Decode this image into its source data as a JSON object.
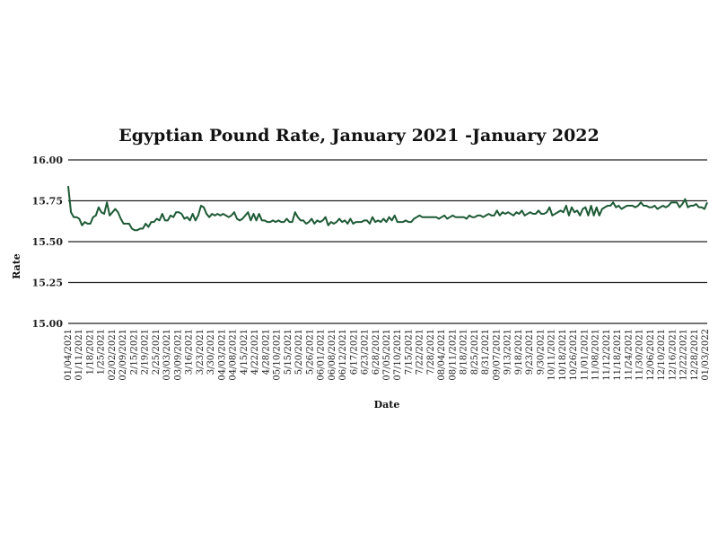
{
  "chart_data": {
    "type": "line",
    "title": "Egyptian Pound Rate, January 2021 -January 2022",
    "xlabel": "Date",
    "ylabel": "Rate",
    "ylim": [
      15.0,
      16.0
    ],
    "yticks": [
      "15.00",
      "15.25",
      "15.50",
      "15.75",
      "16.00"
    ],
    "grid": "horizontal",
    "line_color": "#1d5a35",
    "x_tick_labels": [
      "01/04/2021",
      "01/11/2021",
      "1/18/2021",
      "1/25/2021",
      "02/02/2021",
      "02/09/2021",
      "2/15/2021",
      "2/19/2021",
      "2/25/2021",
      "03/03/2021",
      "03/09/2021",
      "3/16/2021",
      "3/23/2021",
      "3/30/2021",
      "04/03/2021",
      "04/08/2021",
      "4/15/2021",
      "4/22/2021",
      "4/28/2021",
      "05/10/2021",
      "5/15/2021",
      "5/20/2021",
      "5/26/2021",
      "06/01/2021",
      "06/08/2021",
      "06/12/2021",
      "6/17/2021",
      "6/23/2021",
      "6/28/2021",
      "07/05/2021",
      "07/10/2021",
      "7/15/2021",
      "7/22/2021",
      "7/28/2021",
      "08/04/2021",
      "08/11/2021",
      "8/18/2021",
      "8/25/2021",
      "8/31/2021",
      "09/07/2021",
      "9/13/2021",
      "9/18/2021",
      "9/23/2021",
      "9/30/2021",
      "10/11/2021",
      "10/18/2021",
      "10/26/2021",
      "11/01/2021",
      "11/08/2021",
      "11/12/2021",
      "11/18/2021",
      "11/24/2021",
      "11/30/2021",
      "12/06/2021",
      "12/10/2021",
      "12/16/2021",
      "12/22/2021",
      "12/28/2021",
      "01/03/2022"
    ],
    "series": [
      {
        "values": [
          15.84,
          15.68,
          15.65,
          15.65,
          15.64,
          15.6,
          15.62,
          15.61,
          15.61,
          15.65,
          15.66,
          15.71,
          15.68,
          15.67,
          15.74,
          15.66,
          15.68,
          15.7,
          15.68,
          15.64,
          15.61,
          15.61,
          15.61,
          15.58,
          15.57,
          15.57,
          15.58,
          15.58,
          15.61,
          15.59,
          15.62,
          15.62,
          15.64,
          15.63,
          15.67,
          15.63,
          15.63,
          15.66,
          15.65,
          15.68,
          15.68,
          15.67,
          15.64,
          15.65,
          15.63,
          15.67,
          15.63,
          15.66,
          15.72,
          15.71,
          15.67,
          15.65,
          15.67,
          15.66,
          15.67,
          15.66,
          15.67,
          15.66,
          15.65,
          15.66,
          15.68,
          15.64,
          15.63,
          15.64,
          15.66,
          15.68,
          15.63,
          15.67,
          15.63,
          15.67,
          15.63,
          15.63,
          15.62,
          15.62,
          15.63,
          15.62,
          15.63,
          15.62,
          15.62,
          15.64,
          15.62,
          15.62,
          15.68,
          15.65,
          15.63,
          15.63,
          15.61,
          15.62,
          15.64,
          15.61,
          15.63,
          15.62,
          15.63,
          15.65,
          15.6,
          15.62,
          15.61,
          15.62,
          15.64,
          15.62,
          15.63,
          15.61,
          15.64,
          15.61,
          15.62,
          15.62,
          15.62,
          15.63,
          15.63,
          15.61,
          15.65,
          15.62,
          15.63,
          15.62,
          15.64,
          15.62,
          15.65,
          15.63,
          15.66,
          15.62,
          15.62,
          15.62,
          15.63,
          15.62,
          15.62,
          15.64,
          15.65,
          15.66,
          15.65,
          15.65,
          15.65,
          15.65,
          15.65,
          15.65,
          15.64,
          15.65,
          15.66,
          15.64,
          15.65,
          15.66,
          15.65,
          15.65,
          15.65,
          15.65,
          15.64,
          15.66,
          15.65,
          15.65,
          15.66,
          15.66,
          15.65,
          15.66,
          15.67,
          15.66,
          15.66,
          15.69,
          15.66,
          15.68,
          15.67,
          15.68,
          15.67,
          15.66,
          15.68,
          15.67,
          15.69,
          15.66,
          15.67,
          15.68,
          15.67,
          15.67,
          15.69,
          15.67,
          15.67,
          15.68,
          15.71,
          15.66,
          15.67,
          15.68,
          15.69,
          15.68,
          15.72,
          15.66,
          15.71,
          15.68,
          15.69,
          15.66,
          15.7,
          15.71,
          15.66,
          15.72,
          15.66,
          15.71,
          15.66,
          15.7,
          15.71,
          15.72,
          15.72,
          15.74,
          15.71,
          15.72,
          15.7,
          15.71,
          15.72,
          15.72,
          15.72,
          15.71,
          15.72,
          15.74,
          15.72,
          15.72,
          15.71,
          15.71,
          15.72,
          15.7,
          15.71,
          15.72,
          15.71,
          15.72,
          15.74,
          15.74,
          15.74,
          15.71,
          15.73,
          15.76,
          15.71,
          15.72,
          15.72,
          15.73,
          15.71,
          15.71,
          15.7,
          15.74
        ]
      }
    ]
  }
}
